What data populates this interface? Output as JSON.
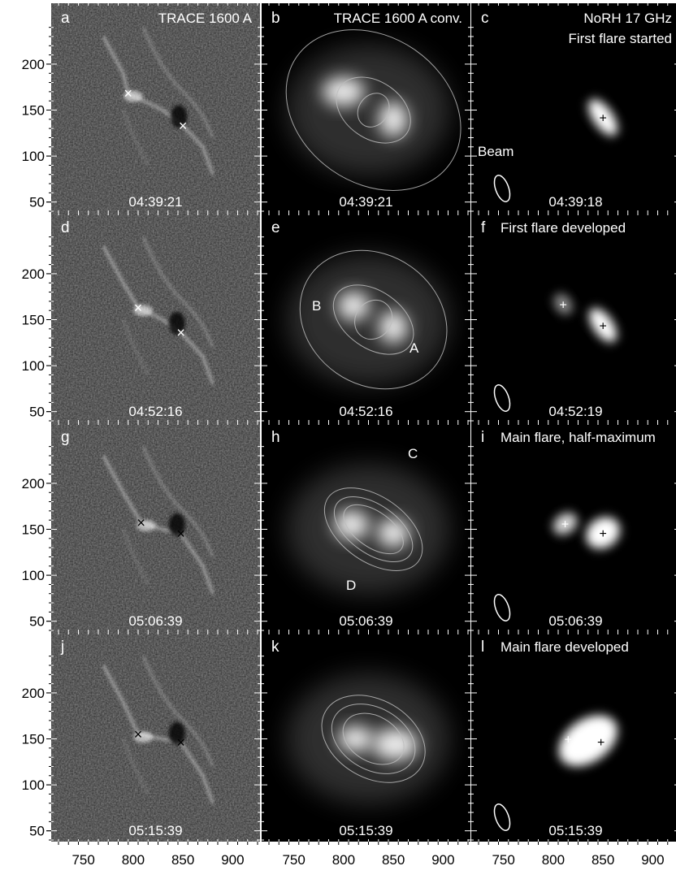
{
  "figure": {
    "y_ticks": [
      "200",
      "150",
      "100",
      "50"
    ],
    "x_ticks": [
      "750",
      "800",
      "850",
      "900"
    ],
    "beam_label": "Beam",
    "region_labels": {
      "A": "A",
      "B": "B",
      "C": "C",
      "D": "D"
    },
    "panels": [
      {
        "letter": "a",
        "title": "TRACE 1600 A",
        "time": "04:39:21",
        "kind": "trace",
        "marker": "×",
        "marker_color": "#ffffff"
      },
      {
        "letter": "b",
        "title": "TRACE 1600 A conv.",
        "time": "04:39:21",
        "kind": "conv"
      },
      {
        "letter": "c",
        "title": "NoRH 17 GHz",
        "subtitle": "First flare started",
        "time": "04:39:18",
        "kind": "norh"
      },
      {
        "letter": "d",
        "title": "",
        "time": "04:52:16",
        "kind": "trace",
        "marker": "×",
        "marker_color": "#ffffff"
      },
      {
        "letter": "e",
        "title": "",
        "time": "04:52:16",
        "kind": "conv"
      },
      {
        "letter": "f",
        "title": "First flare developed",
        "time": "04:52:19",
        "kind": "norh"
      },
      {
        "letter": "g",
        "title": "",
        "time": "05:06:39",
        "kind": "trace",
        "marker": "×",
        "marker_color": "#000000"
      },
      {
        "letter": "h",
        "title": "",
        "time": "05:06:39",
        "kind": "conv"
      },
      {
        "letter": "i",
        "title": "Main flare, half-maximum",
        "time": "05:06:39",
        "kind": "norh"
      },
      {
        "letter": "j",
        "title": "",
        "time": "05:15:39",
        "kind": "trace",
        "marker": "×",
        "marker_color": "#000000"
      },
      {
        "letter": "k",
        "title": "",
        "time": "05:15:39",
        "kind": "conv"
      },
      {
        "letter": "l",
        "title": "Main flare developed",
        "time": "05:15:39",
        "kind": "norh"
      }
    ]
  }
}
